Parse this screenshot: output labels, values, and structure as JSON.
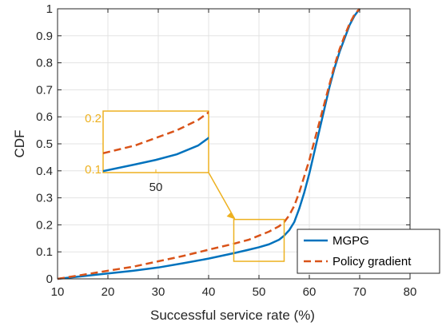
{
  "chart_data": {
    "type": "line",
    "title": "",
    "xlabel": "Successful service rate (%)",
    "ylabel": "CDF",
    "xlim": [
      10,
      80
    ],
    "ylim": [
      0,
      1
    ],
    "x_ticks": [
      "10",
      "20",
      "30",
      "40",
      "50",
      "60",
      "70",
      "80"
    ],
    "y_ticks": [
      "0",
      "0.1",
      "0.2",
      "0.3",
      "0.4",
      "0.5",
      "0.6",
      "0.7",
      "0.8",
      "0.9",
      "1"
    ],
    "grid": true,
    "legend_position": "bottom-right",
    "series": [
      {
        "name": "MGPG",
        "color": "#0072BD",
        "line_style": "solid",
        "points": [
          [
            10,
            0
          ],
          [
            15,
            0.01
          ],
          [
            20,
            0.02
          ],
          [
            25,
            0.03
          ],
          [
            30,
            0.042
          ],
          [
            35,
            0.058
          ],
          [
            40,
            0.075
          ],
          [
            45,
            0.095
          ],
          [
            48,
            0.108
          ],
          [
            50,
            0.117
          ],
          [
            52,
            0.128
          ],
          [
            54,
            0.145
          ],
          [
            55,
            0.16
          ],
          [
            56,
            0.18
          ],
          [
            57,
            0.21
          ],
          [
            58,
            0.26
          ],
          [
            59,
            0.32
          ],
          [
            60,
            0.39
          ],
          [
            61,
            0.47
          ],
          [
            62,
            0.55
          ],
          [
            63,
            0.63
          ],
          [
            64,
            0.71
          ],
          [
            65,
            0.78
          ],
          [
            66,
            0.84
          ],
          [
            67,
            0.89
          ],
          [
            68,
            0.94
          ],
          [
            69,
            0.975
          ],
          [
            70,
            1.0
          ]
        ]
      },
      {
        "name": "Policy gradient",
        "color": "#D95319",
        "line_style": "dashed",
        "points": [
          [
            10,
            0
          ],
          [
            15,
            0.015
          ],
          [
            20,
            0.03
          ],
          [
            25,
            0.045
          ],
          [
            30,
            0.065
          ],
          [
            35,
            0.085
          ],
          [
            40,
            0.108
          ],
          [
            45,
            0.13
          ],
          [
            48,
            0.145
          ],
          [
            50,
            0.16
          ],
          [
            52,
            0.175
          ],
          [
            54,
            0.195
          ],
          [
            55,
            0.21
          ],
          [
            56,
            0.235
          ],
          [
            57,
            0.27
          ],
          [
            58,
            0.32
          ],
          [
            59,
            0.38
          ],
          [
            60,
            0.44
          ],
          [
            61,
            0.51
          ],
          [
            62,
            0.58
          ],
          [
            63,
            0.65
          ],
          [
            64,
            0.72
          ],
          [
            65,
            0.79
          ],
          [
            66,
            0.85
          ],
          [
            67,
            0.9
          ],
          [
            68,
            0.945
          ],
          [
            69,
            0.98
          ],
          [
            70,
            1.0
          ]
        ]
      }
    ],
    "inset": {
      "color": "#EDB120",
      "zoom_region": {
        "xlim": [
          45,
          55
        ],
        "ylim": [
          0.065,
          0.22
        ]
      },
      "y_tick_labels": [
        "0.2",
        "0.1"
      ],
      "x_tick_labels": [
        "50"
      ],
      "y_range": [
        0.1,
        0.2
      ],
      "x_range": [
        45,
        55
      ],
      "x_tick_value": 50
    }
  }
}
